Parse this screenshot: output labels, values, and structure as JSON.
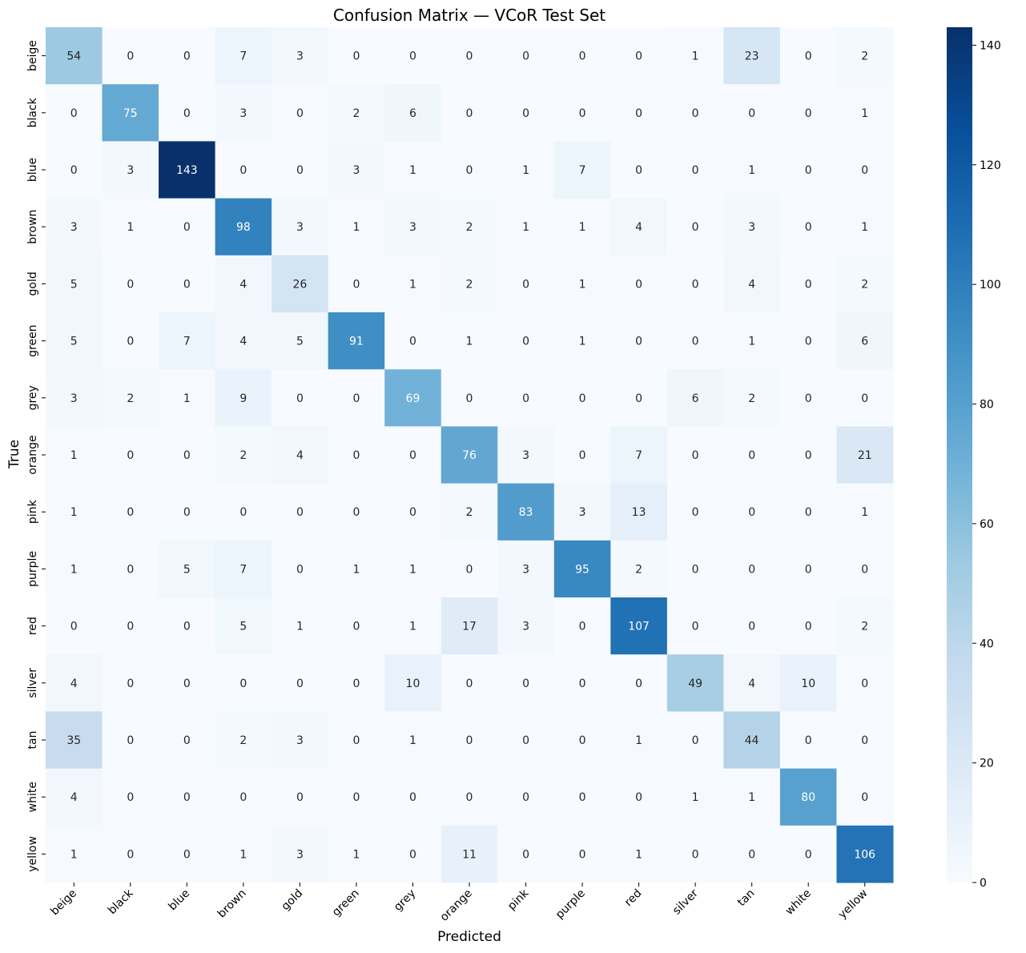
{
  "chart_data": {
    "type": "heatmap",
    "title": "Confusion Matrix — VCoR Test Set",
    "xlabel": "Predicted",
    "ylabel": "True",
    "x_categories": [
      "beige",
      "black",
      "blue",
      "brown",
      "gold",
      "green",
      "grey",
      "orange",
      "pink",
      "purple",
      "red",
      "silver",
      "tan",
      "white",
      "yellow"
    ],
    "y_categories": [
      "beige",
      "black",
      "blue",
      "brown",
      "gold",
      "green",
      "grey",
      "orange",
      "pink",
      "purple",
      "red",
      "silver",
      "tan",
      "white",
      "yellow"
    ],
    "values": [
      [
        54,
        0,
        0,
        7,
        3,
        0,
        0,
        0,
        0,
        0,
        0,
        1,
        23,
        0,
        2
      ],
      [
        0,
        75,
        0,
        3,
        0,
        2,
        6,
        0,
        0,
        0,
        0,
        0,
        0,
        0,
        1
      ],
      [
        0,
        3,
        143,
        0,
        0,
        3,
        1,
        0,
        1,
        7,
        0,
        0,
        1,
        0,
        0
      ],
      [
        3,
        1,
        0,
        98,
        3,
        1,
        3,
        2,
        1,
        1,
        4,
        0,
        3,
        0,
        1
      ],
      [
        5,
        0,
        0,
        4,
        26,
        0,
        1,
        2,
        0,
        1,
        0,
        0,
        4,
        0,
        2
      ],
      [
        5,
        0,
        7,
        4,
        5,
        91,
        0,
        1,
        0,
        1,
        0,
        0,
        1,
        0,
        6
      ],
      [
        3,
        2,
        1,
        9,
        0,
        0,
        69,
        0,
        0,
        0,
        0,
        6,
        2,
        0,
        0
      ],
      [
        1,
        0,
        0,
        2,
        4,
        0,
        0,
        76,
        3,
        0,
        7,
        0,
        0,
        0,
        21
      ],
      [
        1,
        0,
        0,
        0,
        0,
        0,
        0,
        2,
        83,
        3,
        13,
        0,
        0,
        0,
        1
      ],
      [
        1,
        0,
        5,
        7,
        0,
        1,
        1,
        0,
        3,
        95,
        2,
        0,
        0,
        0,
        0
      ],
      [
        0,
        0,
        0,
        5,
        1,
        0,
        1,
        17,
        3,
        0,
        107,
        0,
        0,
        0,
        2
      ],
      [
        4,
        0,
        0,
        0,
        0,
        0,
        10,
        0,
        0,
        0,
        0,
        49,
        4,
        10,
        0
      ],
      [
        35,
        0,
        0,
        2,
        3,
        0,
        1,
        0,
        0,
        0,
        1,
        0,
        44,
        0,
        0
      ],
      [
        4,
        0,
        0,
        0,
        0,
        0,
        0,
        0,
        0,
        0,
        0,
        1,
        1,
        80,
        0
      ],
      [
        1,
        0,
        0,
        1,
        3,
        1,
        0,
        11,
        0,
        0,
        1,
        0,
        0,
        0,
        106
      ]
    ],
    "colorbar": {
      "colormap": "Blues",
      "range": [
        0,
        143
      ],
      "ticks": [
        0,
        20,
        40,
        60,
        80,
        100,
        120,
        140
      ]
    },
    "grid": false
  }
}
